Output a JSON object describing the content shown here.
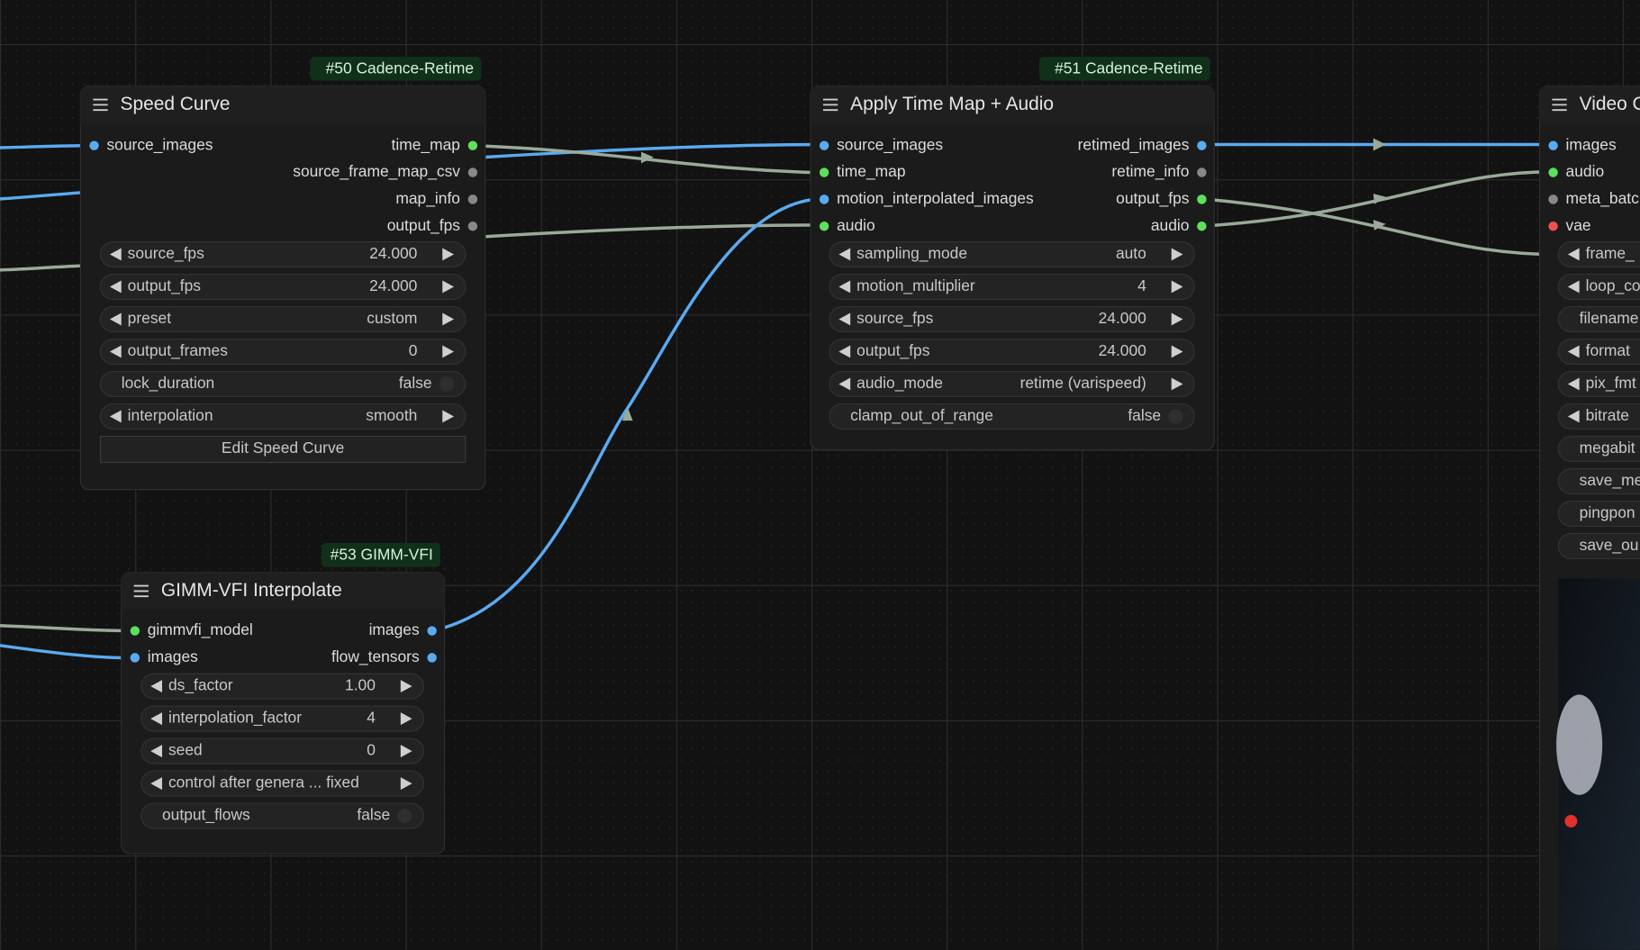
{
  "nodes": [
    {
      "badge": "#50 Cadence-Retime",
      "title": "Speed Curve",
      "inputs": [
        {
          "name": "source_images",
          "color": "#5aaaf0"
        }
      ],
      "outputs": [
        {
          "name": "time_map",
          "color": "#5de05d"
        },
        {
          "name": "source_frame_map_csv",
          "color": "#888888"
        },
        {
          "name": "map_info",
          "color": "#888888"
        },
        {
          "name": "output_fps",
          "color": "#888888"
        }
      ],
      "widgets": [
        {
          "label": "source_fps",
          "value": "24.000"
        },
        {
          "label": "output_fps",
          "value": "24.000"
        },
        {
          "label": "preset",
          "value": "custom"
        },
        {
          "label": "output_frames",
          "value": "0"
        },
        {
          "label": "lock_duration",
          "value": "false",
          "toggle": true
        },
        {
          "label": "interpolation",
          "value": "smooth"
        }
      ],
      "button": "Edit Speed Curve"
    },
    {
      "badge": "#51 Cadence-Retime",
      "title": "Apply Time Map + Audio",
      "inputs": [
        {
          "name": "source_images",
          "color": "#5aaaf0"
        },
        {
          "name": "time_map",
          "color": "#5de05d"
        },
        {
          "name": "motion_interpolated_images",
          "color": "#5aaaf0"
        },
        {
          "name": "audio",
          "color": "#5de05d"
        }
      ],
      "outputs": [
        {
          "name": "retimed_images",
          "color": "#5aaaf0"
        },
        {
          "name": "retime_info",
          "color": "#888888"
        },
        {
          "name": "output_fps",
          "color": "#5de05d"
        },
        {
          "name": "audio",
          "color": "#5de05d"
        }
      ],
      "widgets": [
        {
          "label": "sampling_mode",
          "value": "auto"
        },
        {
          "label": "motion_multiplier",
          "value": "4"
        },
        {
          "label": "source_fps",
          "value": "24.000"
        },
        {
          "label": "output_fps",
          "value": "24.000"
        },
        {
          "label": "audio_mode",
          "value": "retime (varispeed)"
        },
        {
          "label": "clamp_out_of_range",
          "value": "false",
          "toggle": true
        }
      ]
    },
    {
      "badge": "#53 GIMM-VFI",
      "title": "GIMM-VFI Interpolate",
      "inputs": [
        {
          "name": "gimmvfi_model",
          "color": "#5de05d"
        },
        {
          "name": "images",
          "color": "#5aaaf0"
        }
      ],
      "outputs": [
        {
          "name": "images",
          "color": "#5aaaf0"
        },
        {
          "name": "flow_tensors",
          "color": "#5aaaf0"
        }
      ],
      "widgets": [
        {
          "label": "ds_factor",
          "value": "1.00"
        },
        {
          "label": "interpolation_factor",
          "value": "4"
        },
        {
          "label": "seed",
          "value": "0"
        },
        {
          "label": "control after genera ... fixed"
        },
        {
          "label": "output_flows",
          "value": "false",
          "toggle": true
        }
      ]
    },
    {
      "title": "Video C",
      "inputs": [
        {
          "name": "images",
          "color": "#5aaaf0"
        },
        {
          "name": "audio",
          "color": "#5de05d"
        },
        {
          "name": "meta_batc",
          "color": "#888888"
        },
        {
          "name": "vae",
          "color": "#f05050"
        }
      ],
      "outputs": [],
      "widgets": [
        {
          "label": "frame_"
        },
        {
          "label": "loop_co"
        },
        {
          "label": "filename",
          "toggle": true
        },
        {
          "label": "format"
        },
        {
          "label": "pix_fmt"
        },
        {
          "label": "bitrate"
        },
        {
          "label": "megabit",
          "toggle": true
        },
        {
          "label": "save_me",
          "toggle": true
        },
        {
          "label": "pingpon",
          "toggle": true
        },
        {
          "label": "save_ou",
          "toggle": true
        }
      ]
    }
  ]
}
